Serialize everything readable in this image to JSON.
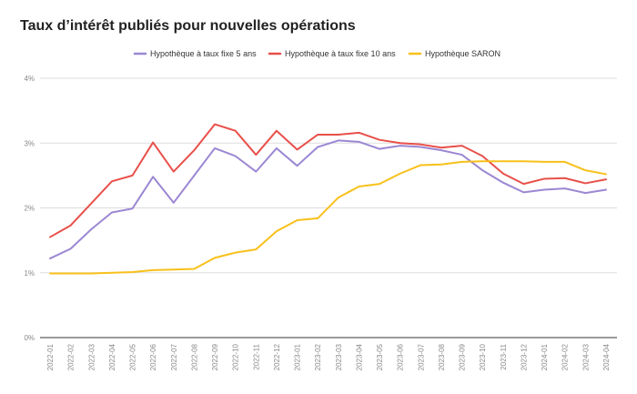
{
  "chart_data": {
    "type": "line",
    "title": "Taux d’intérêt publiés pour nouvelles opérations",
    "xlabel": "",
    "ylabel": "",
    "ylim": [
      0,
      4
    ],
    "yticks": [
      0,
      1,
      2,
      3,
      4
    ],
    "ytick_labels": [
      "0%",
      "1%",
      "2%",
      "3%",
      "4%"
    ],
    "grid": true,
    "legend_position": "top-center",
    "x": [
      "2022-01",
      "2022-02",
      "2022-03",
      "2022-04",
      "2022-05",
      "2022-06",
      "2022-07",
      "2022-08",
      "2022-09",
      "2022-10",
      "2022-11",
      "2022-12",
      "2023-01",
      "2023-02",
      "2023-03",
      "2023-04",
      "2023-05",
      "2023-06",
      "2023-07",
      "2023-08",
      "2023-09",
      "2023-10",
      "2023-11",
      "2023-12",
      "2024-01",
      "2024-02",
      "2024-03",
      "2024-04"
    ],
    "series": [
      {
        "name": "Hypothèque à taux fixe 5 ans",
        "color": "#9b87d3",
        "values": [
          1.22,
          1.37,
          1.67,
          1.93,
          1.99,
          2.48,
          2.08,
          2.5,
          2.92,
          2.8,
          2.56,
          2.92,
          2.65,
          2.94,
          3.04,
          3.02,
          2.91,
          2.96,
          2.94,
          2.89,
          2.82,
          2.58,
          2.39,
          2.24,
          2.28,
          2.3,
          2.23,
          2.28
        ]
      },
      {
        "name": "Hypothèque à taux fixe 10 ans",
        "color": "#e8504a",
        "values": [
          1.55,
          1.73,
          2.07,
          2.41,
          2.5,
          3.01,
          2.56,
          2.89,
          3.29,
          3.19,
          2.82,
          3.19,
          2.9,
          3.13,
          3.13,
          3.16,
          3.05,
          3.0,
          2.98,
          2.93,
          2.96,
          2.8,
          2.53,
          2.37,
          2.45,
          2.46,
          2.38,
          2.44
        ]
      },
      {
        "name": "Hypothèque SARON",
        "color": "#f8c01a",
        "values": [
          0.99,
          0.99,
          0.99,
          1.0,
          1.01,
          1.04,
          1.05,
          1.06,
          1.23,
          1.31,
          1.36,
          1.64,
          1.81,
          1.84,
          2.16,
          2.33,
          2.37,
          2.53,
          2.66,
          2.67,
          2.71,
          2.72,
          2.72,
          2.72,
          2.71,
          2.71,
          2.58,
          2.52
        ]
      }
    ]
  }
}
